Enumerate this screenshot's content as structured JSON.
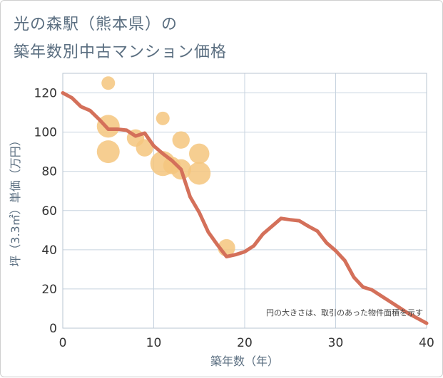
{
  "title_line1": "光の森駅（熊本県）の",
  "title_line2": "築年数別中古マンション価格",
  "colors": {
    "title": "#5a6e80",
    "line": "#d4705a",
    "bubble": "#f5c67e",
    "grid": "#c7d3df",
    "plot_border": "#b8c4d0"
  },
  "chart_data": {
    "type": "scatter",
    "xlabel": "築年数（年）",
    "ylabel": "坪（3.3㎡）単価（万円）",
    "xlim": [
      0,
      40
    ],
    "ylim": [
      0,
      130
    ],
    "xticks": [
      0,
      10,
      20,
      30,
      40
    ],
    "yticks": [
      0,
      20,
      40,
      60,
      80,
      100,
      120
    ],
    "grid": true,
    "annotation": "円の大きさは、取引のあった物件面積を示す",
    "bubbles": [
      {
        "x": 5,
        "y": 125,
        "size": 1
      },
      {
        "x": 5,
        "y": 103,
        "size": 4
      },
      {
        "x": 5,
        "y": 90,
        "size": 4
      },
      {
        "x": 8,
        "y": 97,
        "size": 2
      },
      {
        "x": 9,
        "y": 92,
        "size": 2
      },
      {
        "x": 11,
        "y": 107,
        "size": 1
      },
      {
        "x": 11,
        "y": 84,
        "size": 5
      },
      {
        "x": 12,
        "y": 83,
        "size": 2
      },
      {
        "x": 13,
        "y": 96,
        "size": 2
      },
      {
        "x": 13,
        "y": 81,
        "size": 3
      },
      {
        "x": 15,
        "y": 89,
        "size": 3
      },
      {
        "x": 15,
        "y": 79,
        "size": 4
      },
      {
        "x": 18,
        "y": 41,
        "size": 2
      }
    ],
    "series": [
      {
        "x": [
          0,
          1,
          2,
          3,
          4,
          5,
          6,
          7,
          8,
          9,
          10,
          11,
          12,
          13,
          14,
          15,
          16,
          17,
          18,
          19,
          20,
          21,
          22,
          23,
          24,
          25,
          26,
          27,
          28,
          29,
          30,
          31,
          32,
          33,
          34,
          35,
          36,
          37,
          38,
          39,
          40
        ],
        "y": [
          120,
          117.5,
          113,
          111,
          106.5,
          101.5,
          101.5,
          101,
          98,
          99.5,
          93,
          89,
          85.5,
          81,
          67,
          59,
          49,
          42.5,
          36.5,
          37.5,
          39,
          42,
          48,
          52,
          56,
          55.3,
          54.8,
          52,
          49.5,
          43.5,
          39.5,
          34.5,
          26,
          21,
          19.5,
          16.5,
          13.5,
          10.5,
          7.5,
          5,
          2.5
        ]
      }
    ]
  }
}
